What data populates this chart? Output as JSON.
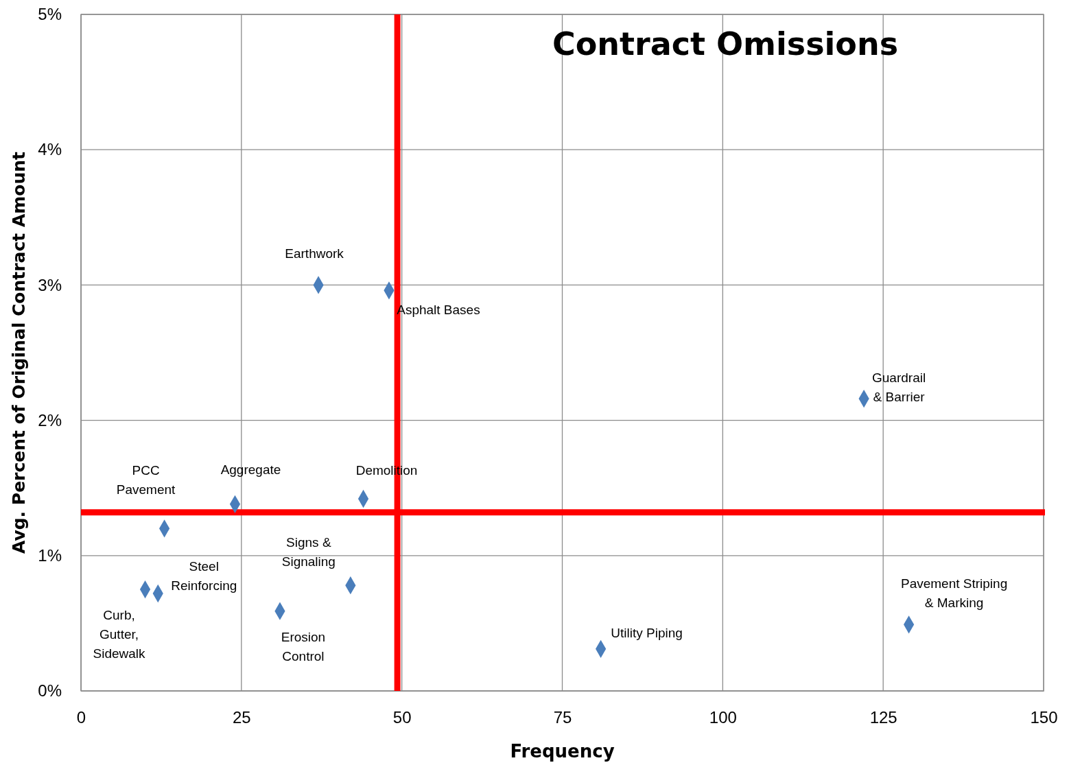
{
  "chart_data": {
    "type": "scatter",
    "title": "Contract Omissions",
    "xlabel": "Frequency",
    "ylabel": "Avg. Percent of Original Contract Amount",
    "x": [
      37,
      48,
      122,
      44,
      24,
      13,
      12,
      42,
      10,
      31,
      81,
      129
    ],
    "series": [
      {
        "color": "#4a7ebb",
        "values": [
          3.0,
          2.96,
          2.16,
          1.42,
          1.38,
          1.2,
          0.72,
          0.78,
          0.75,
          0.59,
          0.31,
          0.49
        ]
      }
    ],
    "xlim": [
      0,
      150
    ],
    "xticks": [
      0,
      25,
      50,
      75,
      100,
      125,
      150
    ],
    "ylim": [
      0,
      5
    ],
    "yticks": [
      {
        "value": 0,
        "label": "0%"
      },
      {
        "value": 1,
        "label": "1%"
      },
      {
        "value": 2,
        "label": "2%"
      },
      {
        "value": 3,
        "label": "3%"
      },
      {
        "value": 4,
        "label": "4%"
      },
      {
        "value": 5,
        "label": "5%"
      }
    ],
    "grid": true,
    "marker": "diamond",
    "ref_lines": [
      {
        "axis": "x",
        "value": 49.3,
        "color": "#ff0000"
      },
      {
        "axis": "y",
        "value": 1.32,
        "color": "#ff0000"
      }
    ],
    "annotations": [
      {
        "text": "Earthwork",
        "x": 37,
        "y": 3.0
      },
      {
        "text": "Asphalt Bases",
        "x": 48,
        "y": 2.96
      },
      {
        "text": "Guardrail\n& Barrier",
        "x": 122,
        "y": 2.16
      },
      {
        "text": "Demolition",
        "x": 44,
        "y": 1.42
      },
      {
        "text": "Aggregate",
        "x": 24,
        "y": 1.38
      },
      {
        "text": "PCC\nPavement",
        "x": 13,
        "y": 1.2
      },
      {
        "text": "Steel\nReinforcing",
        "x": 12,
        "y": 0.72
      },
      {
        "text": "Signs &\nSignaling",
        "x": 42,
        "y": 0.78
      },
      {
        "text": "Curb,\nGutter,\nSidewalk",
        "x": 10,
        "y": 0.75
      },
      {
        "text": "Erosion\nControl",
        "x": 31,
        "y": 0.59
      },
      {
        "text": "Utility Piping",
        "x": 81,
        "y": 0.31
      },
      {
        "text": "Pavement Striping\n& Marking",
        "x": 129,
        "y": 0.49
      }
    ]
  }
}
